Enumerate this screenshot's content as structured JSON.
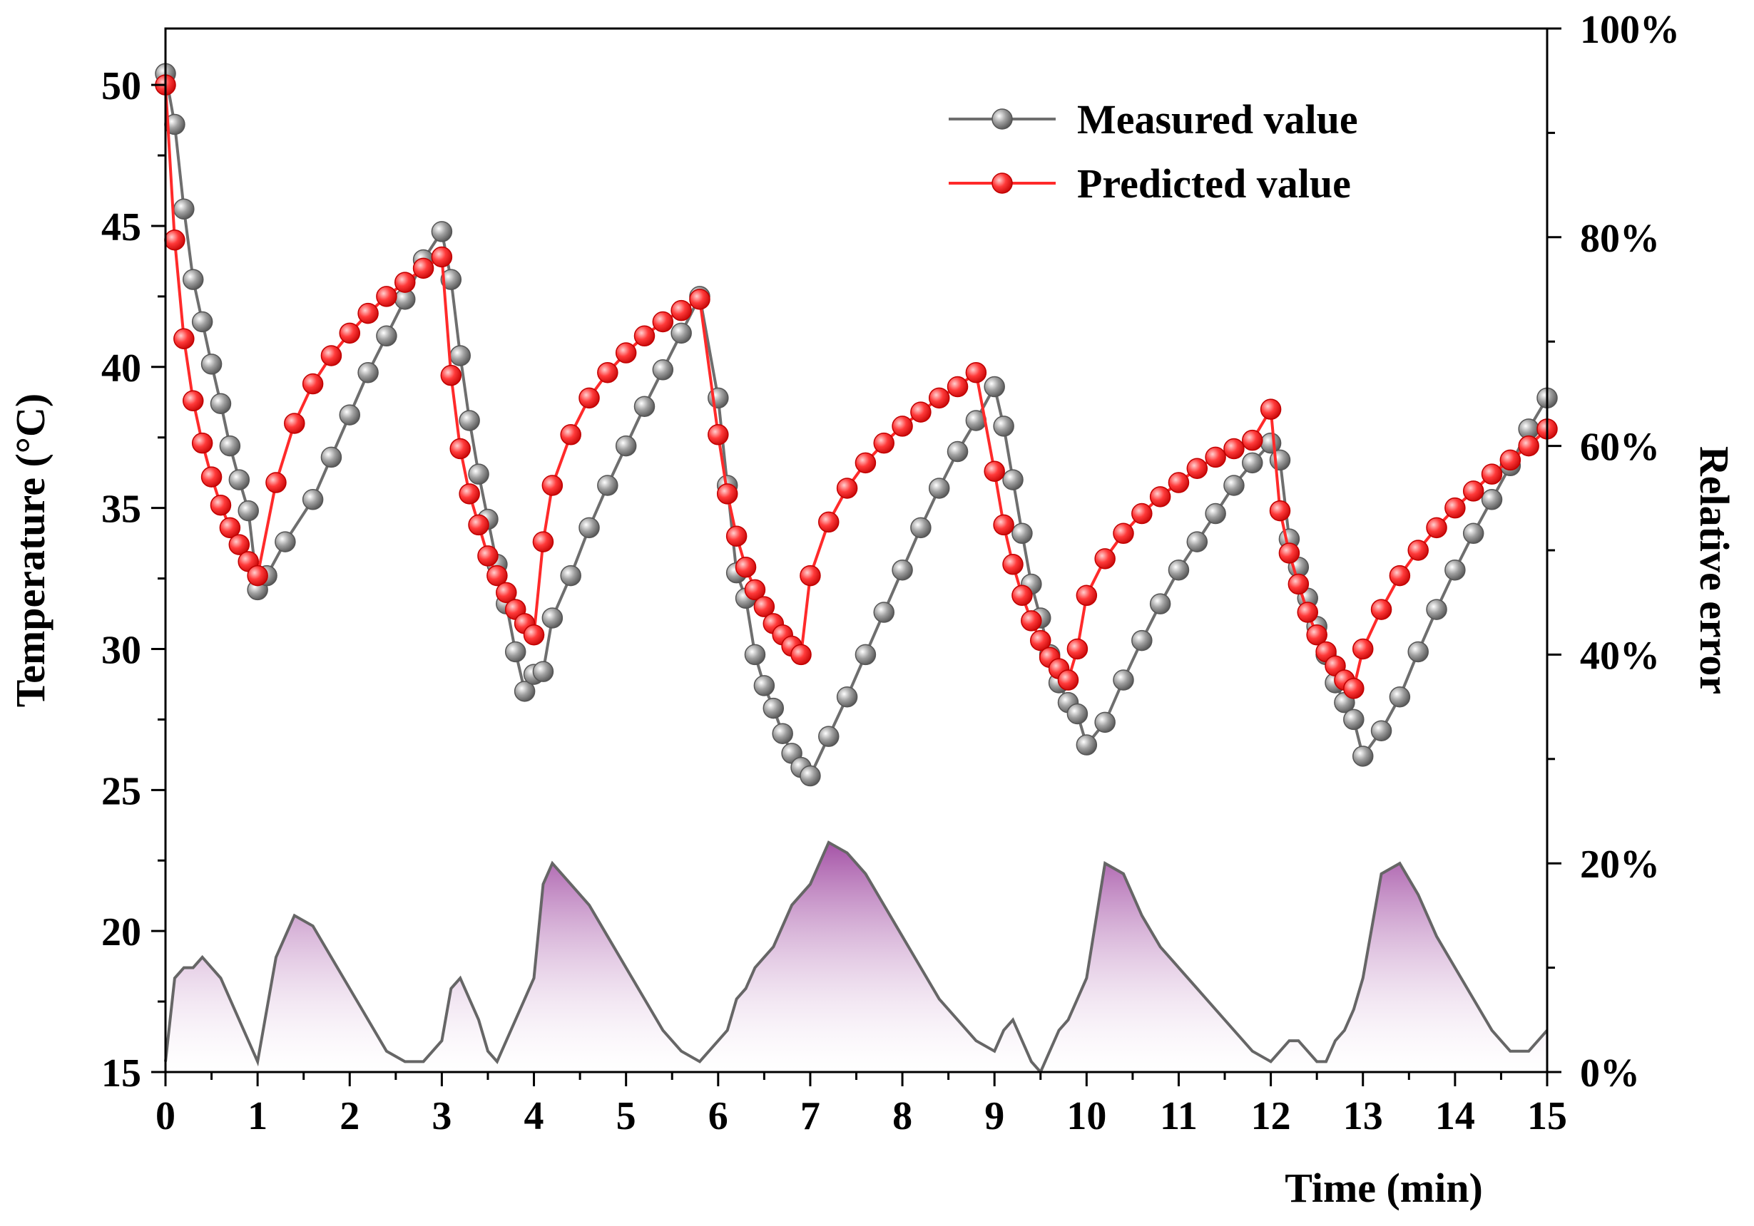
{
  "chart_data": {
    "type": "line",
    "xlabel": "Time (min)",
    "ylabel": "Temperature (°C)",
    "y2label": "Relative error",
    "xlim": [
      0,
      15
    ],
    "ylim": [
      15,
      52
    ],
    "y2lim": [
      0,
      100
    ],
    "x_ticks": [
      "0",
      "1",
      "2",
      "3",
      "4",
      "5",
      "6",
      "7",
      "8",
      "9",
      "10",
      "11",
      "12",
      "13",
      "14",
      "15"
    ],
    "y_ticks": [
      "15",
      "20",
      "25",
      "30",
      "35",
      "40",
      "45",
      "50"
    ],
    "y2_ticks": [
      "0%",
      "20%",
      "40%",
      "60%",
      "80%",
      "100%"
    ],
    "legend_position": "top-right",
    "series": [
      {
        "name": "Measured value",
        "color": "#6e6e6e",
        "axis": "left",
        "x": [
          0,
          0.1,
          0.2,
          0.3,
          0.4,
          0.5,
          0.6,
          0.7,
          0.8,
          0.9,
          1.0,
          1.1,
          1.3,
          1.6,
          1.8,
          2.0,
          2.2,
          2.4,
          2.6,
          2.8,
          3.0,
          3.1,
          3.2,
          3.3,
          3.4,
          3.5,
          3.6,
          3.7,
          3.8,
          3.9,
          4.0,
          4.1,
          4.2,
          4.4,
          4.6,
          4.8,
          5.0,
          5.2,
          5.4,
          5.6,
          5.8,
          6.0,
          6.1,
          6.2,
          6.3,
          6.4,
          6.5,
          6.6,
          6.7,
          6.8,
          6.9,
          7.0,
          7.2,
          7.4,
          7.6,
          7.8,
          8.0,
          8.2,
          8.4,
          8.6,
          8.8,
          9.0,
          9.1,
          9.2,
          9.3,
          9.4,
          9.5,
          9.6,
          9.7,
          9.8,
          9.9,
          10.0,
          10.2,
          10.4,
          10.6,
          10.8,
          11.0,
          11.2,
          11.4,
          11.6,
          11.8,
          12.0,
          12.1,
          12.2,
          12.3,
          12.4,
          12.5,
          12.6,
          12.7,
          12.8,
          12.9,
          13.0,
          13.2,
          13.4,
          13.6,
          13.8,
          14.0,
          14.2,
          14.4,
          14.6,
          14.8,
          15.0
        ],
        "values": [
          50.4,
          48.6,
          45.6,
          43.1,
          41.6,
          40.1,
          38.7,
          37.2,
          36.0,
          34.9,
          32.1,
          32.6,
          33.8,
          35.3,
          36.8,
          38.3,
          39.8,
          41.1,
          42.4,
          43.8,
          44.8,
          43.1,
          40.4,
          38.1,
          36.2,
          34.6,
          33.0,
          31.6,
          29.9,
          28.5,
          29.1,
          29.2,
          31.1,
          32.6,
          34.3,
          35.8,
          37.2,
          38.6,
          39.9,
          41.2,
          42.5,
          38.9,
          35.8,
          32.7,
          31.8,
          29.8,
          28.7,
          27.9,
          27.0,
          26.3,
          25.8,
          25.5,
          26.9,
          28.3,
          29.8,
          31.3,
          32.8,
          34.3,
          35.7,
          37.0,
          38.1,
          39.3,
          37.9,
          36.0,
          34.1,
          32.3,
          31.1,
          29.8,
          28.8,
          28.1,
          27.7,
          26.6,
          27.4,
          28.9,
          30.3,
          31.6,
          32.8,
          33.8,
          34.8,
          35.8,
          36.6,
          37.3,
          36.7,
          33.9,
          32.9,
          31.8,
          30.8,
          29.8,
          28.8,
          28.1,
          27.5,
          26.2,
          27.1,
          28.3,
          29.9,
          31.4,
          32.8,
          34.1,
          35.3,
          36.5,
          37.8,
          38.9
        ]
      },
      {
        "name": "Predicted value",
        "color": "#ff2a2a",
        "axis": "left",
        "x": [
          0,
          0.1,
          0.2,
          0.3,
          0.4,
          0.5,
          0.6,
          0.7,
          0.8,
          0.9,
          1.0,
          1.2,
          1.4,
          1.6,
          1.8,
          2.0,
          2.2,
          2.4,
          2.6,
          2.8,
          3.0,
          3.1,
          3.2,
          3.3,
          3.4,
          3.5,
          3.6,
          3.7,
          3.8,
          3.9,
          4.0,
          4.1,
          4.2,
          4.4,
          4.6,
          4.8,
          5.0,
          5.2,
          5.4,
          5.6,
          5.8,
          6.0,
          6.1,
          6.2,
          6.3,
          6.4,
          6.5,
          6.6,
          6.7,
          6.8,
          6.9,
          7.0,
          7.2,
          7.4,
          7.6,
          7.8,
          8.0,
          8.2,
          8.4,
          8.6,
          8.8,
          9.0,
          9.1,
          9.2,
          9.3,
          9.4,
          9.5,
          9.6,
          9.7,
          9.8,
          9.9,
          10.0,
          10.2,
          10.4,
          10.6,
          10.8,
          11.0,
          11.2,
          11.4,
          11.6,
          11.8,
          12.0,
          12.1,
          12.2,
          12.3,
          12.4,
          12.5,
          12.6,
          12.7,
          12.8,
          12.9,
          13.0,
          13.2,
          13.4,
          13.6,
          13.8,
          14.0,
          14.2,
          14.4,
          14.6,
          14.8,
          15.0
        ],
        "values": [
          50.0,
          44.5,
          41.0,
          38.8,
          37.3,
          36.1,
          35.1,
          34.3,
          33.7,
          33.1,
          32.6,
          35.9,
          38.0,
          39.4,
          40.4,
          41.2,
          41.9,
          42.5,
          43.0,
          43.5,
          43.9,
          39.7,
          37.1,
          35.5,
          34.4,
          33.3,
          32.6,
          32.0,
          31.4,
          30.9,
          30.5,
          33.8,
          35.8,
          37.6,
          38.9,
          39.8,
          40.5,
          41.1,
          41.6,
          42.0,
          42.4,
          37.6,
          35.5,
          34.0,
          32.9,
          32.1,
          31.5,
          30.9,
          30.5,
          30.1,
          29.8,
          32.6,
          34.5,
          35.7,
          36.6,
          37.3,
          37.9,
          38.4,
          38.9,
          39.3,
          39.8,
          36.3,
          34.4,
          33.0,
          31.9,
          31.0,
          30.3,
          29.7,
          29.3,
          28.9,
          30.0,
          31.9,
          33.2,
          34.1,
          34.8,
          35.4,
          35.9,
          36.4,
          36.8,
          37.1,
          37.4,
          38.5,
          34.9,
          33.4,
          32.3,
          31.3,
          30.5,
          29.9,
          29.4,
          28.9,
          28.6,
          30.0,
          31.4,
          32.6,
          33.5,
          34.3,
          35.0,
          35.6,
          36.2,
          36.7,
          37.2,
          37.8
        ]
      },
      {
        "name": "Relative error",
        "type": "area",
        "color": "#666666",
        "fill_color": "#a04aa2",
        "axis": "right",
        "x": [
          0,
          0.1,
          0.2,
          0.3,
          0.4,
          0.5,
          0.6,
          0.7,
          0.8,
          0.9,
          1.0,
          1.2,
          1.4,
          1.6,
          1.8,
          2.0,
          2.2,
          2.4,
          2.6,
          2.8,
          3.0,
          3.1,
          3.2,
          3.3,
          3.4,
          3.5,
          3.6,
          3.7,
          3.8,
          3.9,
          4.0,
          4.1,
          4.2,
          4.4,
          4.6,
          4.8,
          5.0,
          5.2,
          5.4,
          5.6,
          5.8,
          6.0,
          6.1,
          6.2,
          6.3,
          6.4,
          6.5,
          6.6,
          6.7,
          6.8,
          6.9,
          7.0,
          7.2,
          7.4,
          7.6,
          7.8,
          8.0,
          8.2,
          8.4,
          8.6,
          8.8,
          9.0,
          9.1,
          9.2,
          9.3,
          9.4,
          9.5,
          9.6,
          9.7,
          9.8,
          9.9,
          10.0,
          10.2,
          10.4,
          10.6,
          10.8,
          11.0,
          11.2,
          11.4,
          11.6,
          11.8,
          12.0,
          12.1,
          12.2,
          12.3,
          12.4,
          12.5,
          12.6,
          12.7,
          12.8,
          12.9,
          13.0,
          13.2,
          13.4,
          13.6,
          13.8,
          14.0,
          14.2,
          14.4,
          14.6,
          14.8,
          15.0
        ],
        "values": [
          1,
          9,
          10,
          10,
          11,
          10,
          9,
          7,
          5,
          3,
          1,
          11,
          15,
          14,
          11,
          8,
          5,
          2,
          1,
          1,
          3,
          8,
          9,
          7,
          5,
          2,
          1,
          3,
          5,
          7,
          9,
          18,
          20,
          18,
          16,
          13,
          10,
          7,
          4,
          2,
          1,
          3,
          4,
          7,
          8,
          10,
          11,
          12,
          14,
          16,
          17,
          18,
          22,
          21,
          19,
          16,
          13,
          10,
          7,
          5,
          3,
          2,
          4,
          5,
          3,
          1,
          0,
          2,
          4,
          5,
          7,
          9,
          20,
          19,
          15,
          12,
          10,
          8,
          6,
          4,
          2,
          1,
          2,
          3,
          3,
          2,
          1,
          1,
          3,
          4,
          6,
          9,
          19,
          20,
          17,
          13,
          10,
          7,
          4,
          2,
          2,
          4
        ]
      }
    ]
  }
}
